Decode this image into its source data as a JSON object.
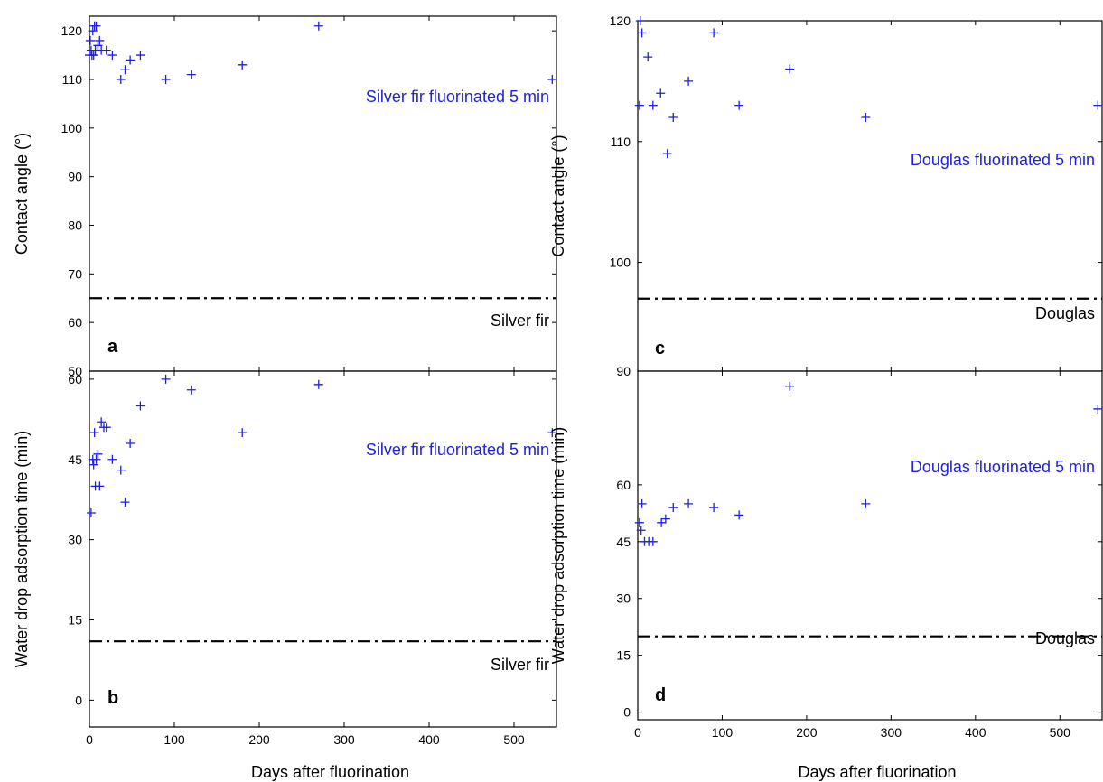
{
  "colors": {
    "marker": "#1f1fdc",
    "axis": "#000000",
    "reference": "#000000"
  },
  "chart_data": [
    {
      "type": "scatter",
      "panel": "a",
      "ylabel": "Contact angle (°)",
      "xlabel": "",
      "xlim": [
        0,
        550
      ],
      "ylim": [
        50,
        123
      ],
      "xticks": [
        0,
        100,
        200,
        300,
        400,
        500
      ],
      "yticks": [
        50,
        60,
        70,
        80,
        90,
        100,
        110,
        120
      ],
      "show_x_tick_labels": false,
      "series": [
        {
          "x": [
            0,
            1,
            2,
            3,
            4,
            5,
            6,
            7,
            8,
            10,
            12,
            14,
            20,
            27,
            37,
            42,
            48,
            60,
            90,
            120,
            180,
            270,
            545
          ],
          "y": [
            115,
            118,
            116,
            115,
            120,
            115,
            121,
            116,
            121,
            117,
            118,
            116,
            116,
            115,
            110,
            112,
            114,
            115,
            110,
            111,
            113,
            121,
            110
          ]
        }
      ],
      "reference_line": {
        "y": 65,
        "label": "Silver fir"
      },
      "annotation": "Silver fir fluorinated 5 min"
    },
    {
      "type": "scatter",
      "panel": "b",
      "ylabel": "Water drop adsorption time (min)",
      "xlabel": "Days after fluorination",
      "xlim": [
        0,
        550
      ],
      "ylim": [
        -5,
        61.5
      ],
      "xticks": [
        0,
        100,
        200,
        300,
        400,
        500
      ],
      "yticks": [
        0,
        15,
        30,
        45,
        60
      ],
      "show_x_tick_labels": true,
      "series": [
        {
          "x": [
            2,
            4,
            5,
            6,
            7,
            8,
            10,
            12,
            14,
            17,
            20,
            27,
            37,
            42,
            48,
            60,
            90,
            120,
            180,
            270,
            545
          ],
          "y": [
            35,
            45,
            44,
            50,
            40,
            45,
            46,
            40,
            52,
            51,
            51,
            45,
            43,
            37,
            48,
            55,
            60,
            58,
            50,
            59,
            50
          ]
        }
      ],
      "reference_line": {
        "y": 11,
        "label": "Silver fir"
      },
      "annotation": "Silver fir fluorinated 5 min"
    },
    {
      "type": "scatter",
      "panel": "c",
      "ylabel": "Contact angle (°)",
      "xlabel": "",
      "xlim": [
        0,
        550
      ],
      "ylim": [
        91,
        120
      ],
      "xticks": [
        0,
        100,
        200,
        300,
        400,
        500
      ],
      "yticks": [
        100,
        110,
        120
      ],
      "show_x_tick_labels": false,
      "series": [
        {
          "x": [
            2,
            3,
            5,
            12,
            18,
            27,
            35,
            42,
            60,
            90,
            120,
            180,
            270,
            545
          ],
          "y": [
            113,
            120,
            119,
            117,
            113,
            114,
            109,
            112,
            115,
            119,
            113,
            116,
            112,
            113
          ]
        }
      ],
      "reference_line": {
        "y": 97,
        "label": "Douglas"
      },
      "annotation": "Douglas fluorinated 5 min"
    },
    {
      "type": "scatter",
      "panel": "d",
      "ylabel": "Water drop adsorption time (min)",
      "xlabel": "Days after fluorination",
      "xlim": [
        0,
        550
      ],
      "ylim": [
        -2,
        90
      ],
      "xticks": [
        0,
        100,
        200,
        300,
        400,
        500
      ],
      "yticks": [
        0,
        15,
        30,
        45,
        60,
        90
      ],
      "show_x_tick_labels": true,
      "series": [
        {
          "x": [
            2,
            4,
            5,
            8,
            13,
            18,
            28,
            33,
            42,
            60,
            90,
            120,
            180,
            270,
            545
          ],
          "y": [
            50,
            48,
            55,
            45,
            45,
            45,
            50,
            51,
            54,
            55,
            54,
            52,
            86,
            55,
            80
          ]
        }
      ],
      "reference_line": {
        "y": 20,
        "label": "Douglas"
      },
      "annotation": "Douglas fluorinated 5 min"
    }
  ]
}
